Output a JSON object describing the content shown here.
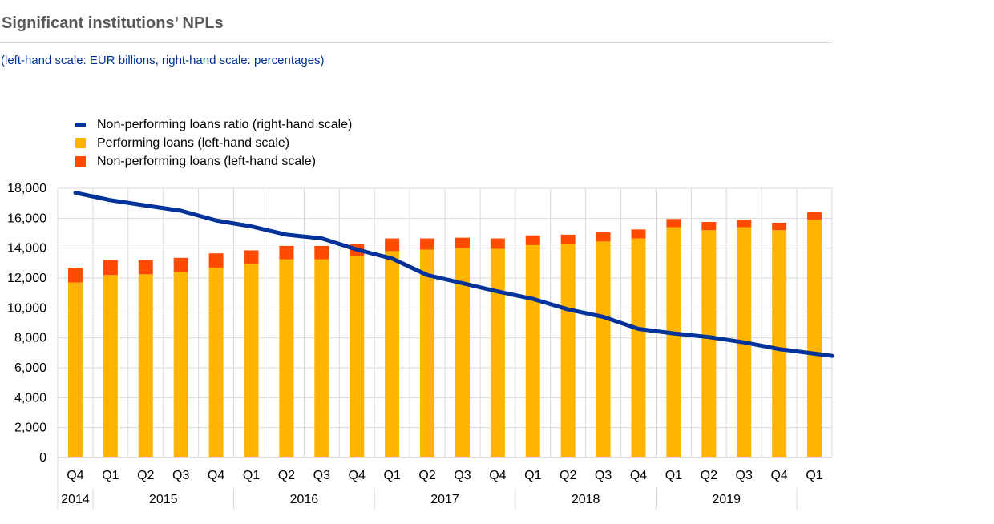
{
  "title": "Significant institutions’ NPLs",
  "subtitle": "(left-hand scale: EUR billions, right-hand scale: percentages)",
  "legend": {
    "items": [
      {
        "label": "Non-performing loans ratio (right-hand scale)",
        "kind": "line",
        "color": "#003299"
      },
      {
        "label": "Performing loans (left-hand scale)",
        "kind": "box",
        "color": "#FFB400"
      },
      {
        "label": "Non-performing loans (left-hand scale)",
        "kind": "box",
        "color": "#FF4B00"
      }
    ]
  },
  "chart_data": {
    "type": "bar",
    "stacked": true,
    "title": "Significant institutions’ NPLs",
    "categories": [
      "Q4",
      "Q1",
      "Q2",
      "Q3",
      "Q4",
      "Q1",
      "Q2",
      "Q3",
      "Q4",
      "Q1",
      "Q2",
      "Q3",
      "Q4",
      "Q1",
      "Q2",
      "Q3",
      "Q4",
      "Q1",
      "Q2",
      "Q3",
      "Q4",
      "Q1"
    ],
    "year_groups": [
      {
        "label": "2014",
        "start": 0,
        "count": 1
      },
      {
        "label": "2015",
        "start": 1,
        "count": 4
      },
      {
        "label": "2016",
        "start": 5,
        "count": 4
      },
      {
        "label": "2017",
        "start": 9,
        "count": 4
      },
      {
        "label": "2018",
        "start": 13,
        "count": 4
      },
      {
        "label": "2019",
        "start": 17,
        "count": 4
      },
      {
        "label": "",
        "start": 21,
        "count": 1
      }
    ],
    "ylim": [
      0,
      18000
    ],
    "yticks": [
      0,
      2000,
      4000,
      6000,
      8000,
      10000,
      12000,
      14000,
      16000,
      18000
    ],
    "ytick_labels": [
      "0",
      "2,000",
      "4,000",
      "6,000",
      "8,000",
      "10,000",
      "12,000",
      "14,000",
      "16,000",
      "18,000"
    ],
    "series": [
      {
        "name": "Performing loans (left-hand scale)",
        "axis": "left",
        "color": "#FFB400",
        "values": [
          11700,
          12200,
          12250,
          12400,
          12700,
          12950,
          13250,
          13250,
          13450,
          13800,
          13900,
          14000,
          13950,
          14200,
          14300,
          14450,
          14650,
          15400,
          15200,
          15400,
          15200,
          15900
        ]
      },
      {
        "name": "Non-performing loans (left-hand scale)",
        "axis": "left",
        "color": "#FF4B00",
        "values": [
          1000,
          1000,
          950,
          950,
          950,
          900,
          900,
          900,
          850,
          850,
          750,
          700,
          700,
          650,
          600,
          600,
          600,
          550,
          550,
          500,
          500,
          500
        ]
      },
      {
        "name": "Non-performing loans ratio (right-hand scale)",
        "axis": "right",
        "type": "line",
        "color": "#003299",
        "values": [
          7.87,
          7.64,
          7.49,
          7.33,
          7.04,
          6.86,
          6.62,
          6.51,
          6.17,
          5.91,
          5.42,
          5.17,
          4.94,
          4.72,
          4.41,
          4.17,
          3.82,
          3.69,
          3.58,
          3.43,
          3.23,
          3.03
        ],
        "plotted_on_left_scale": [
          17700,
          17200,
          16850,
          16500,
          15850,
          15450,
          14900,
          14650,
          13900,
          13300,
          12200,
          11650,
          11100,
          10600,
          9900,
          9400,
          8600,
          8300,
          8050,
          7700,
          7250,
          6800
        ]
      }
    ],
    "xlabel": "",
    "ylabel": "",
    "grid": "vertical and horizontal",
    "legend_position": "top-left"
  }
}
